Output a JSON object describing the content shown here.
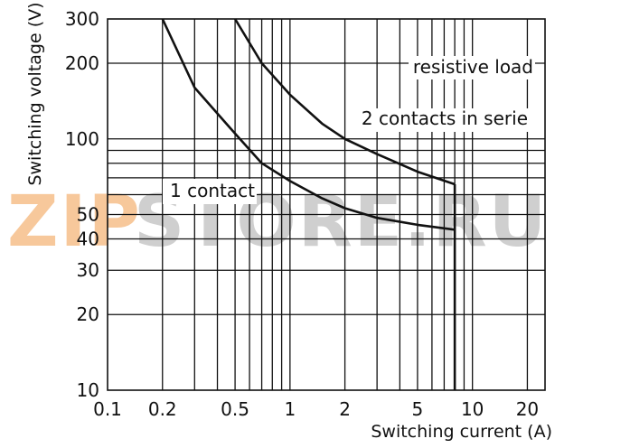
{
  "chart_data": {
    "type": "line",
    "x_scale": "log",
    "y_scale": "log",
    "xlim": [
      0.1,
      25
    ],
    "ylim": [
      10,
      300
    ],
    "xlabel": "Switching current (A)",
    "ylabel": "Switching voltage (V)",
    "x_ticks": [
      "0.1",
      "0.2",
      "0.5",
      "1",
      "2",
      "5",
      "10",
      "20"
    ],
    "y_ticks": [
      "10",
      "20",
      "30",
      "40",
      "50",
      "100",
      "200",
      "300"
    ],
    "grid": true,
    "series": [
      {
        "name": "1 contact",
        "points": [
          [
            0.2,
            300
          ],
          [
            0.3,
            160
          ],
          [
            0.5,
            105
          ],
          [
            0.7,
            80
          ],
          [
            1,
            68
          ],
          [
            1.5,
            58
          ],
          [
            2,
            53
          ],
          [
            3,
            48.5
          ],
          [
            5,
            45.5
          ],
          [
            8,
            43.5
          ]
        ]
      },
      {
        "name": "2 contacts in serie",
        "points": [
          [
            0.5,
            300
          ],
          [
            0.7,
            200
          ],
          [
            1,
            150
          ],
          [
            1.5,
            115
          ],
          [
            2,
            100
          ],
          [
            3,
            87
          ],
          [
            5,
            74
          ],
          [
            8,
            66
          ]
        ]
      }
    ],
    "annotations": [
      "resistive load",
      "2 contacts in serie",
      "1 contact"
    ]
  },
  "watermark": {
    "text_left": "ZIP",
    "text_right": "STORE.RU",
    "color_left": "#f7c89b",
    "color_right": "#cfcfcf"
  },
  "colors": {
    "line": "#111111",
    "grid": "#111111"
  }
}
